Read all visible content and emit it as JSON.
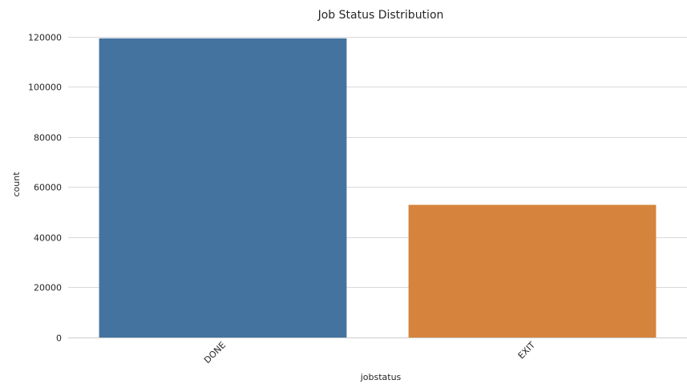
{
  "chart_data": {
    "type": "bar",
    "title": "Job Status Distribution",
    "xlabel": "jobstatus",
    "ylabel": "count",
    "categories": [
      "DONE",
      "EXIT"
    ],
    "values": [
      119300,
      52900
    ],
    "colors": [
      "#4473a0",
      "#d6843d"
    ],
    "ylim": [
      0,
      125000
    ],
    "yticks": [
      0,
      20000,
      40000,
      60000,
      80000,
      100000,
      120000
    ],
    "grid": true,
    "x_tick_rotation": "45 degrees"
  }
}
